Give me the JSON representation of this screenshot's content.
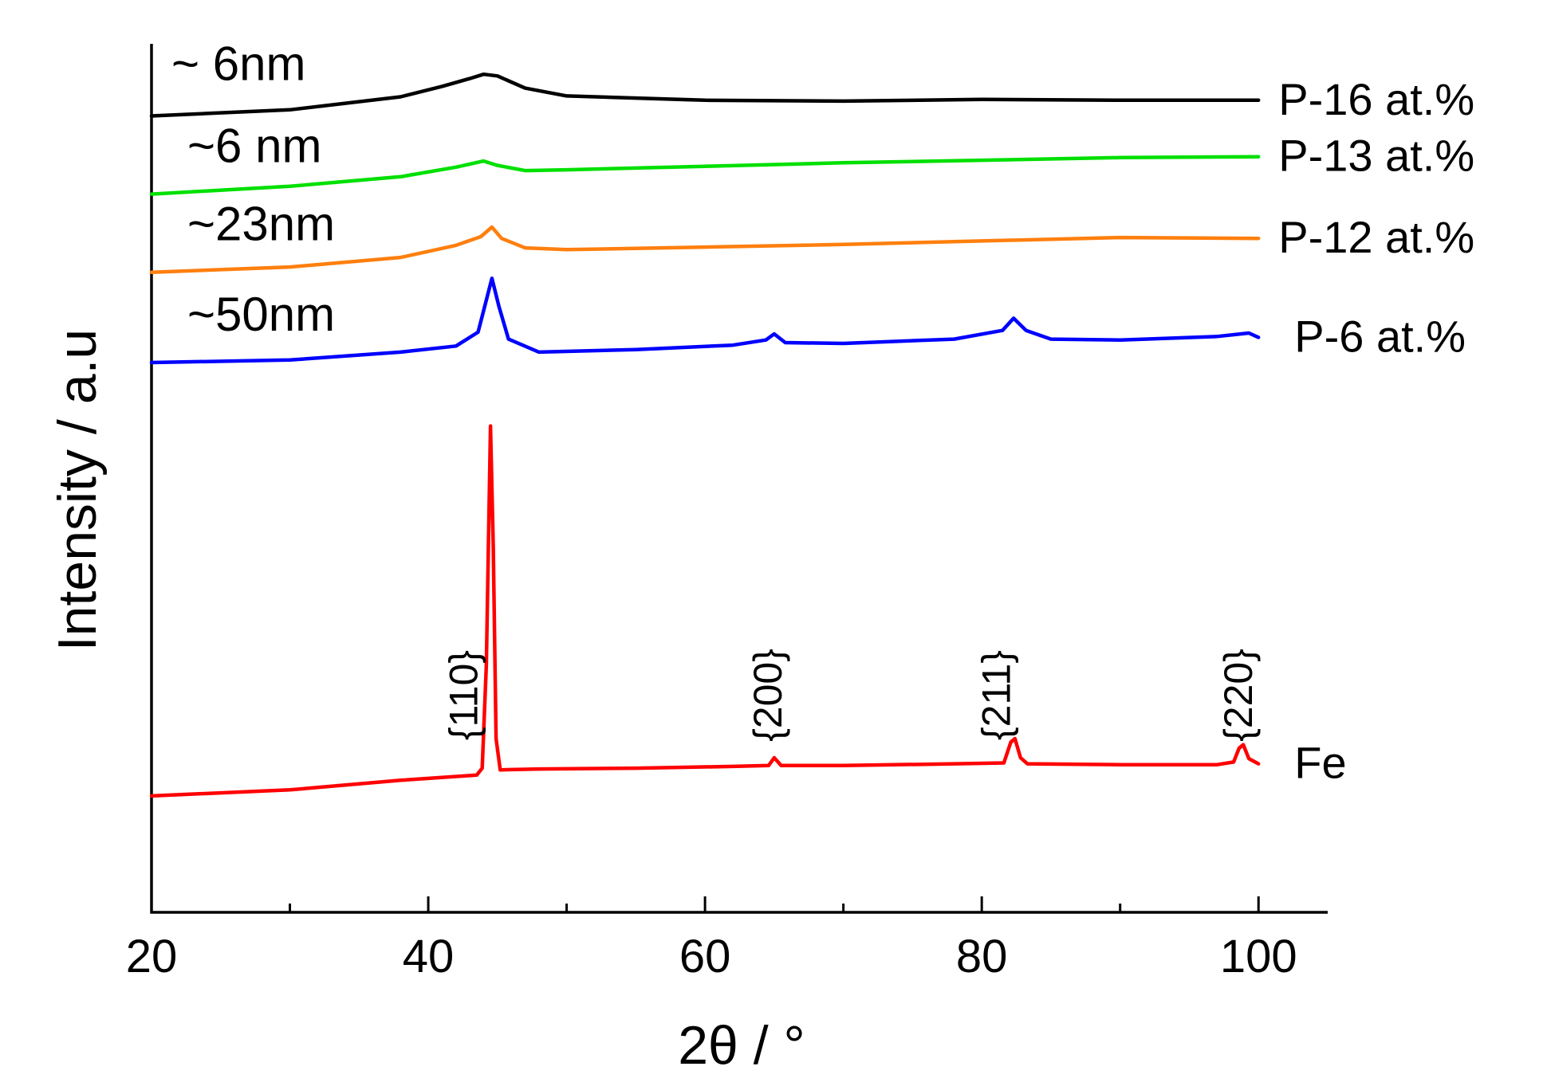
{
  "chart_data": {
    "type": "line",
    "title": "",
    "xlabel": "2θ / °",
    "ylabel": "Intensity / a.u",
    "xlim": [
      20,
      105
    ],
    "xticks": [
      20,
      40,
      60,
      80,
      100
    ],
    "xtick_labels": [
      "20",
      "40",
      "60",
      "80",
      "100"
    ],
    "x_minor_ticks": [
      30,
      50,
      70,
      90
    ],
    "ylim": [
      0,
      100
    ],
    "y_units": "offset intensity (arbitrary units)",
    "grid": false,
    "series": [
      {
        "name": "P-16 at.%",
        "size_label": "~ 6nm",
        "color": "#000000",
        "points": [
          [
            20,
            91.7
          ],
          [
            30,
            92.4
          ],
          [
            38,
            93.9
          ],
          [
            41,
            95.1
          ],
          [
            43,
            96.0
          ],
          [
            44,
            96.5
          ],
          [
            45,
            96.3
          ],
          [
            47,
            94.9
          ],
          [
            50,
            94.0
          ],
          [
            60,
            93.5
          ],
          [
            70,
            93.4
          ],
          [
            80,
            93.6
          ],
          [
            90,
            93.5
          ],
          [
            100,
            93.5
          ]
        ]
      },
      {
        "name": "P-13 at.%",
        "size_label": "~6 nm",
        "color": "#00e000",
        "points": [
          [
            20,
            82.7
          ],
          [
            30,
            83.6
          ],
          [
            38,
            84.7
          ],
          [
            42,
            85.8
          ],
          [
            44,
            86.5
          ],
          [
            45,
            86.0
          ],
          [
            47,
            85.4
          ],
          [
            50,
            85.5
          ],
          [
            60,
            85.9
          ],
          [
            70,
            86.3
          ],
          [
            80,
            86.6
          ],
          [
            90,
            86.9
          ],
          [
            100,
            87.0
          ]
        ]
      },
      {
        "name": "P-12 at.%",
        "size_label": "~23nm",
        "color": "#ff7f0e",
        "points": [
          [
            20,
            73.7
          ],
          [
            30,
            74.3
          ],
          [
            38,
            75.4
          ],
          [
            42,
            76.8
          ],
          [
            43.8,
            77.8
          ],
          [
            44.6,
            78.9
          ],
          [
            45.3,
            77.6
          ],
          [
            47,
            76.5
          ],
          [
            50,
            76.3
          ],
          [
            60,
            76.6
          ],
          [
            70,
            76.9
          ],
          [
            80,
            77.3
          ],
          [
            90,
            77.7
          ],
          [
            100,
            77.6
          ]
        ]
      },
      {
        "name": "P-6 at.%",
        "size_label": "~50nm",
        "color": "#0000ff",
        "points": [
          [
            20,
            63.3
          ],
          [
            30,
            63.6
          ],
          [
            38,
            64.5
          ],
          [
            42,
            65.2
          ],
          [
            43.6,
            66.8
          ],
          [
            44.2,
            70.5
          ],
          [
            44.6,
            73.0
          ],
          [
            45.1,
            69.8
          ],
          [
            45.8,
            66.0
          ],
          [
            48,
            64.5
          ],
          [
            55,
            64.8
          ],
          [
            62,
            65.3
          ],
          [
            64.4,
            65.9
          ],
          [
            65,
            66.6
          ],
          [
            65.8,
            65.6
          ],
          [
            70,
            65.5
          ],
          [
            78,
            66.0
          ],
          [
            81.5,
            67.0
          ],
          [
            82.3,
            68.4
          ],
          [
            83.2,
            67.0
          ],
          [
            85,
            66.0
          ],
          [
            90,
            65.9
          ],
          [
            97,
            66.3
          ],
          [
            99.3,
            66.7
          ],
          [
            100,
            66.2
          ]
        ]
      },
      {
        "name": "Fe",
        "size_label": "",
        "color": "#ff0000",
        "points": [
          [
            20,
            13.4
          ],
          [
            30,
            14.1
          ],
          [
            38,
            15.2
          ],
          [
            43.5,
            15.8
          ],
          [
            43.9,
            16.6
          ],
          [
            44.2,
            28.5
          ],
          [
            44.5,
            56.0
          ],
          [
            44.7,
            42.0
          ],
          [
            44.9,
            20.0
          ],
          [
            45.2,
            16.4
          ],
          [
            48,
            16.5
          ],
          [
            55,
            16.6
          ],
          [
            62,
            16.8
          ],
          [
            64.6,
            16.9
          ],
          [
            65,
            17.8
          ],
          [
            65.5,
            16.9
          ],
          [
            70,
            16.9
          ],
          [
            78,
            17.1
          ],
          [
            81.6,
            17.2
          ],
          [
            82.1,
            19.6
          ],
          [
            82.4,
            20.0
          ],
          [
            82.8,
            17.8
          ],
          [
            83.3,
            17.1
          ],
          [
            90,
            17.0
          ],
          [
            97,
            17.0
          ],
          [
            98.2,
            17.3
          ],
          [
            98.6,
            18.9
          ],
          [
            98.9,
            19.3
          ],
          [
            99.3,
            17.7
          ],
          [
            100,
            17.1
          ]
        ]
      }
    ],
    "annotations": [
      {
        "label": "{110}",
        "x": 42.5
      },
      {
        "label": "{200}",
        "x": 64.5
      },
      {
        "label": "{211}",
        "x": 81.0
      },
      {
        "label": "{220}",
        "x": 98.5
      }
    ]
  }
}
